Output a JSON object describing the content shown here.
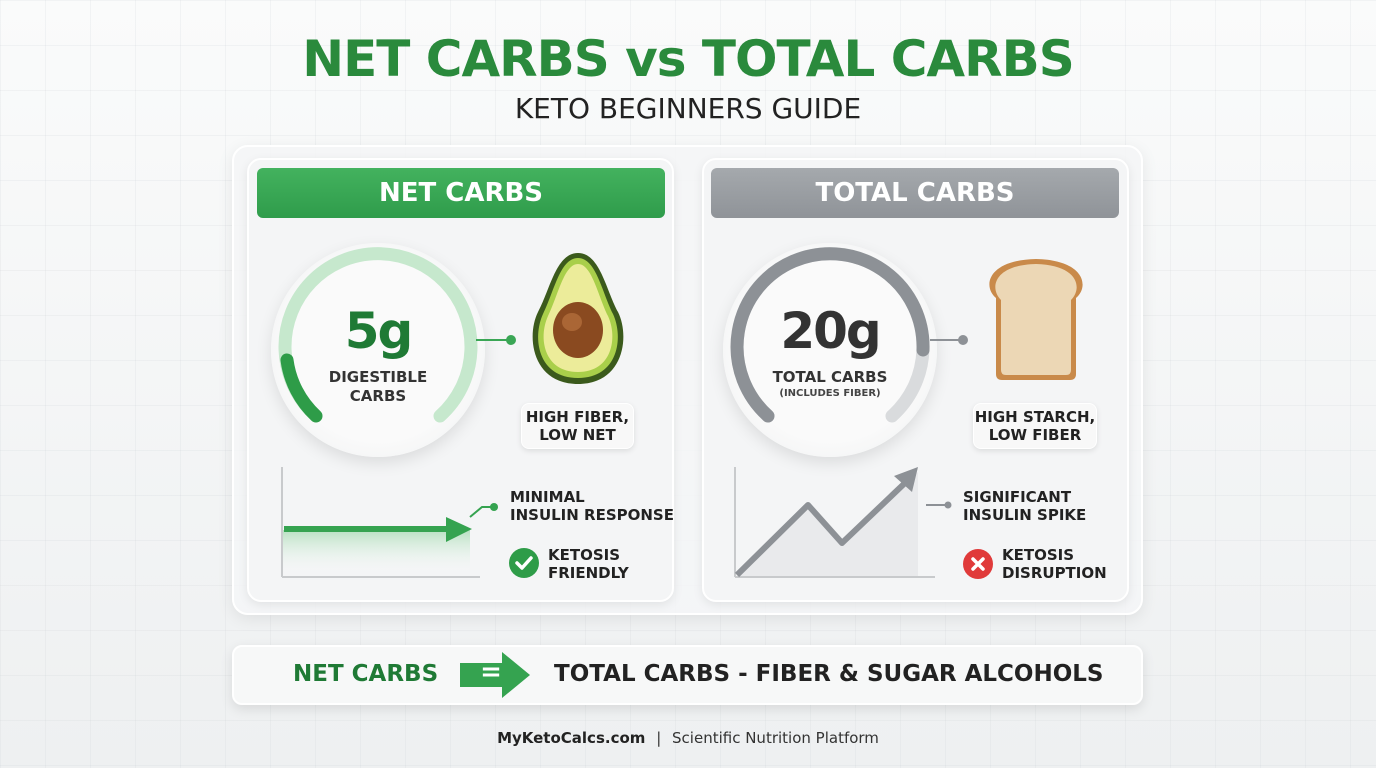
{
  "title": "NET CARBS vs TOTAL CARBS",
  "subtitle": "KETO BEGINNERS GUIDE",
  "net": {
    "header": "NET CARBS",
    "value": "5g",
    "label1": "DIGESTIBLE",
    "label2": "CARBS",
    "food_tag1": "HIGH FIBER,",
    "food_tag2": "LOW NET",
    "food_icon": "avocado",
    "insulin1": "MINIMAL",
    "insulin2": "INSULIN RESPONSE",
    "status1": "KETOSIS",
    "status2": "FRIENDLY",
    "status_icon": "check-icon",
    "color": "#3aa655"
  },
  "total": {
    "header": "TOTAL CARBS",
    "value": "20g",
    "label1": "TOTAL CARBS",
    "label2": "(INCLUDES FIBER)",
    "food_tag1": "HIGH STARCH,",
    "food_tag2": "LOW FIBER",
    "food_icon": "bread",
    "insulin1": "SIGNIFICANT",
    "insulin2": "INSULIN SPIKE",
    "status1": "KETOSIS",
    "status2": "DISRUPTION",
    "status_icon": "x-icon",
    "color": "#9a9ea3"
  },
  "formula": {
    "left": "NET CARBS",
    "equals": "=",
    "right": "TOTAL CARBS - FIBER & SUGAR ALCOHOLS"
  },
  "footer": {
    "site": "MyKetoCalcs.com",
    "sep": "|",
    "tagline": "Scientific Nutrition Platform"
  }
}
